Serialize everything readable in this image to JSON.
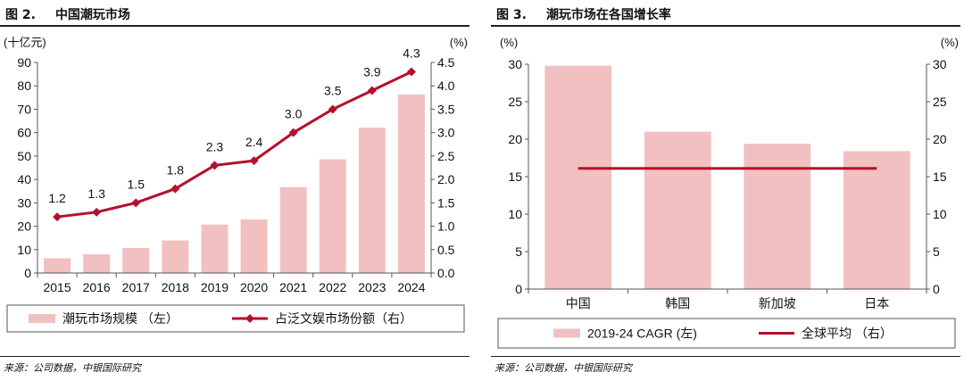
{
  "left_panel": {
    "figure_number": "图 2.",
    "figure_title": "中国潮玩市场",
    "source": "来源：公司数据，中银国际研究"
  },
  "right_panel": {
    "figure_number": "图 3.",
    "figure_title": "潮玩市场在各国增长率",
    "source": "来源：公司数据，中银国际研究"
  },
  "colors": {
    "bar": "#f2c0c0",
    "line": "#b5102e",
    "axis": "#555555"
  },
  "chart_data": [
    {
      "type": "bar",
      "combo_line": true,
      "categories": [
        "2015",
        "2016",
        "2017",
        "2018",
        "2019",
        "2020",
        "2021",
        "2022",
        "2023",
        "2024"
      ],
      "yunit_left": "(十亿元)",
      "yunit_right": "(%)",
      "ylim_left": [
        0,
        90
      ],
      "yticks_left": [
        "0",
        "10",
        "20",
        "30",
        "40",
        "50",
        "60",
        "70",
        "80",
        "90"
      ],
      "ylim_right": [
        0,
        4.5
      ],
      "yticks_right": [
        "0.0",
        "0.5",
        "1.0",
        "1.5",
        "2.0",
        "2.5",
        "3.0",
        "3.5",
        "4.0",
        "4.5"
      ],
      "series": [
        {
          "name": "潮玩市场规模 （左）",
          "kind": "bar",
          "axis": "left",
          "values": [
            6.3,
            8.0,
            10.7,
            13.9,
            20.7,
            22.9,
            36.7,
            48.6,
            62.1,
            76.3
          ]
        },
        {
          "name": "占泛文娱市场份额（右）",
          "kind": "line",
          "axis": "right",
          "values": [
            1.2,
            1.3,
            1.5,
            1.8,
            2.3,
            2.4,
            3.0,
            3.5,
            3.9,
            4.3
          ],
          "labels": [
            "1.2",
            "1.3",
            "1.5",
            "1.8",
            "2.3",
            "2.4",
            "3.0",
            "3.5",
            "3.9",
            "4.3"
          ]
        }
      ],
      "grid": false,
      "legend": "bottom"
    },
    {
      "type": "bar",
      "combo_line": true,
      "categories": [
        "中国",
        "韩国",
        "新加坡",
        "日本"
      ],
      "yunit_left": "(%)",
      "yunit_right": "(%)",
      "ylim_left": [
        0,
        30
      ],
      "yticks_left": [
        "0",
        "5",
        "10",
        "15",
        "20",
        "25",
        "30"
      ],
      "ylim_right": [
        0,
        30
      ],
      "yticks_right": [
        "0",
        "5",
        "10",
        "15",
        "20",
        "25",
        "30"
      ],
      "series": [
        {
          "name": "2019-24 CAGR (左)",
          "kind": "bar",
          "axis": "left",
          "values": [
            29.8,
            21.0,
            19.4,
            18.4
          ]
        },
        {
          "name": "全球平均 （右）",
          "kind": "line",
          "axis": "right",
          "values": [
            16.1,
            16.1,
            16.1,
            16.1
          ]
        }
      ],
      "grid": false,
      "legend": "bottom"
    }
  ]
}
